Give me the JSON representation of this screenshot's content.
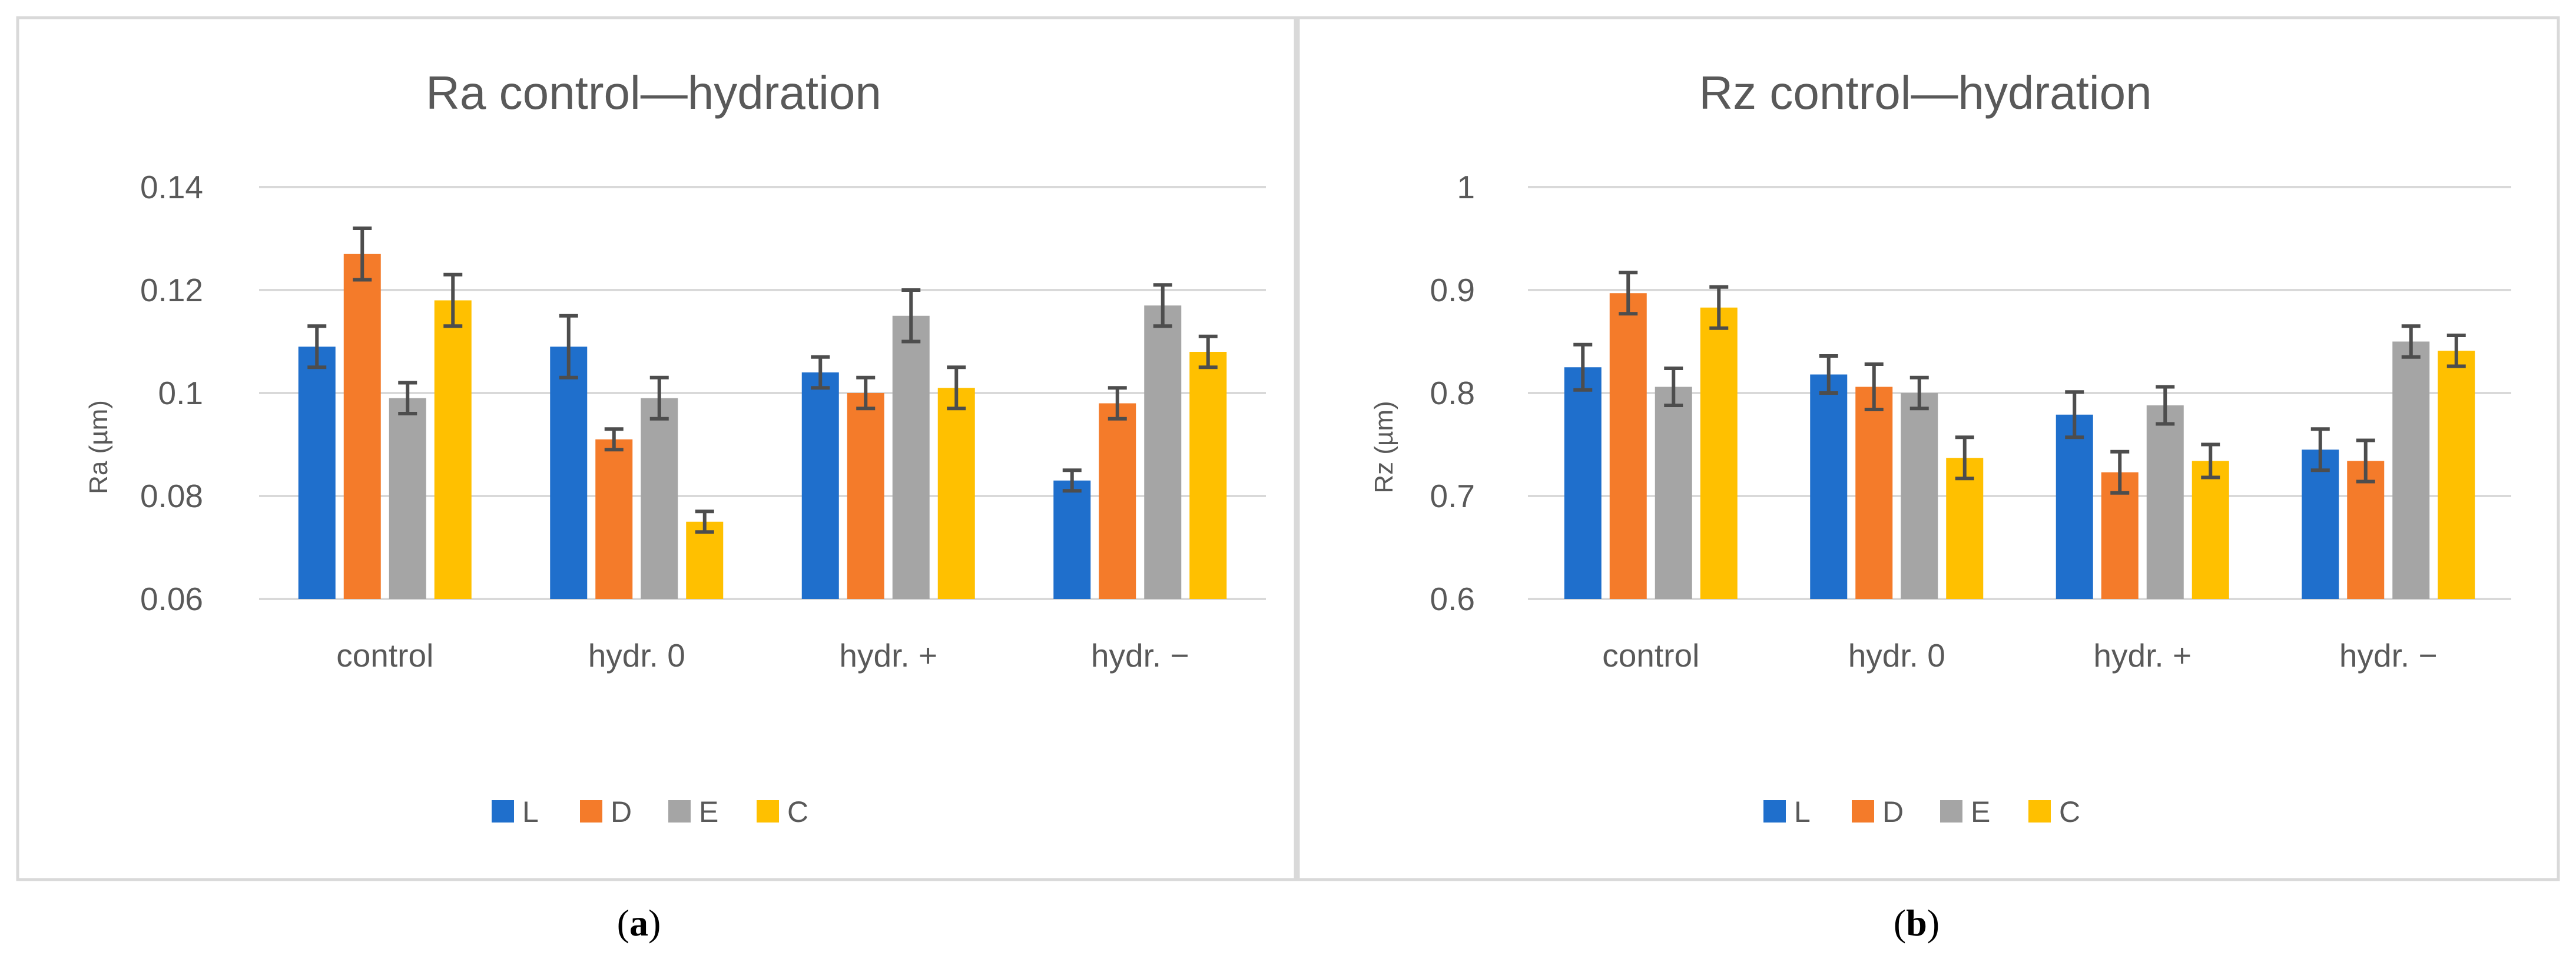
{
  "colors": {
    "L": "#1f6fcc",
    "D": "#f47b2a",
    "E": "#a5a5a5",
    "C": "#ffc000"
  },
  "chart_data": [
    {
      "type": "bar",
      "title": "Ra control—hydration",
      "xlabel": "",
      "ylabel": "Ra (µm)",
      "ylim": [
        0.06,
        0.14
      ],
      "yticks": [
        0.06,
        0.08,
        0.1,
        0.12,
        0.14
      ],
      "ytick_labels": [
        "0.06",
        "0.08",
        "0.1",
        "0.12",
        "0.14"
      ],
      "grid": true,
      "legend_position": "bottom",
      "categories": [
        "control",
        "hydr. 0",
        "hydr. +",
        "hydr. −"
      ],
      "series": [
        {
          "name": "L",
          "values": [
            0.109,
            0.109,
            0.104,
            0.083
          ],
          "errors": [
            0.004,
            0.006,
            0.003,
            0.002
          ]
        },
        {
          "name": "D",
          "values": [
            0.127,
            0.091,
            0.1,
            0.098
          ],
          "errors": [
            0.005,
            0.002,
            0.003,
            0.003
          ]
        },
        {
          "name": "E",
          "values": [
            0.099,
            0.099,
            0.115,
            0.117
          ],
          "errors": [
            0.003,
            0.004,
            0.005,
            0.004
          ]
        },
        {
          "name": "C",
          "values": [
            0.118,
            0.075,
            0.101,
            0.108
          ],
          "errors": [
            0.005,
            0.002,
            0.004,
            0.003
          ]
        }
      ],
      "caption": "a"
    },
    {
      "type": "bar",
      "title": "Rz control—hydration",
      "xlabel": "",
      "ylabel": "Rz (µm)",
      "ylim": [
        0.6,
        1.0
      ],
      "yticks": [
        0.6,
        0.7,
        0.8,
        0.9,
        1.0
      ],
      "ytick_labels": [
        "0.6",
        "0.7",
        "0.8",
        "0.9",
        "1"
      ],
      "grid": true,
      "legend_position": "bottom",
      "categories": [
        "control",
        "hydr. 0",
        "hydr. +",
        "hydr. −"
      ],
      "series": [
        {
          "name": "L",
          "values": [
            0.825,
            0.818,
            0.779,
            0.745
          ],
          "errors": [
            0.022,
            0.018,
            0.022,
            0.02
          ]
        },
        {
          "name": "D",
          "values": [
            0.897,
            0.806,
            0.723,
            0.734
          ],
          "errors": [
            0.02,
            0.022,
            0.02,
            0.02
          ]
        },
        {
          "name": "E",
          "values": [
            0.806,
            0.8,
            0.788,
            0.85
          ],
          "errors": [
            0.018,
            0.015,
            0.018,
            0.015
          ]
        },
        {
          "name": "C",
          "values": [
            0.883,
            0.737,
            0.734,
            0.841
          ],
          "errors": [
            0.02,
            0.02,
            0.016,
            0.015
          ]
        }
      ],
      "caption": "b"
    }
  ]
}
